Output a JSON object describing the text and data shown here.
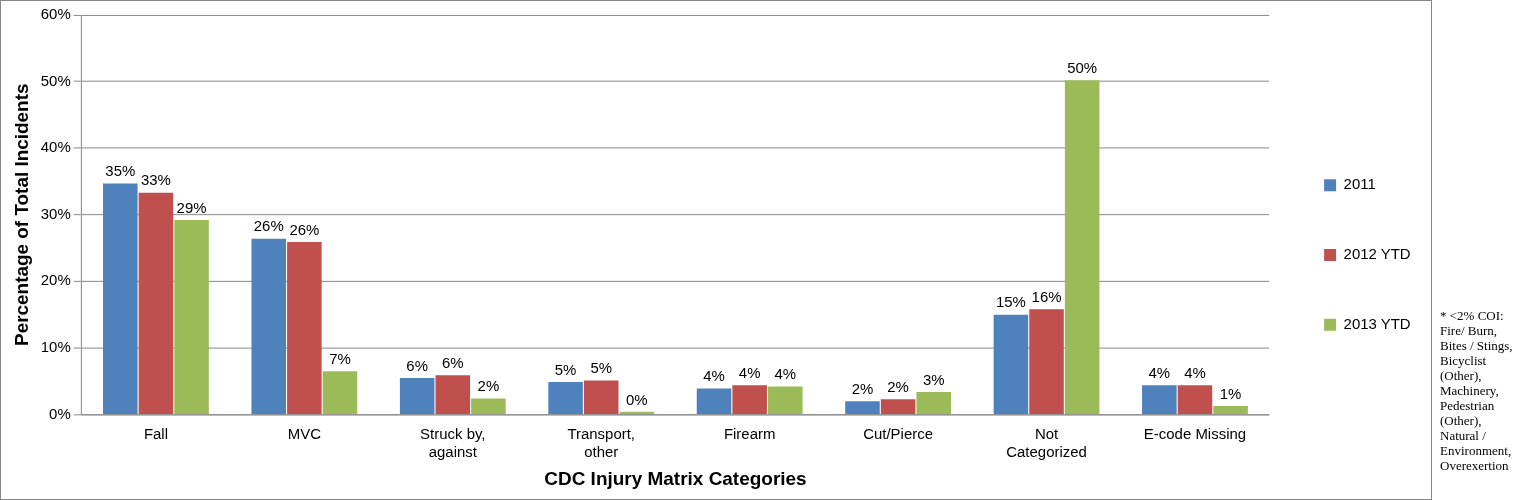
{
  "chart_data": {
    "type": "bar",
    "xlabel": "CDC Injury Matrix Categories",
    "ylabel": "Percentage of Total Incidents",
    "categories": [
      "Fall",
      "MVC",
      "Struck by, against",
      "Transport, other",
      "Firearm",
      "Cut/Pierce",
      "Not Categorized",
      "E-code Missing"
    ],
    "series": [
      {
        "name": "2011",
        "color": "#4f81bd",
        "values": [
          34.7,
          26.4,
          5.5,
          4.9,
          3.9,
          2.0,
          15.0,
          4.4
        ],
        "value_labels": [
          "35%",
          "26%",
          "6%",
          "5%",
          "4%",
          "2%",
          "15%",
          "4%"
        ]
      },
      {
        "name": "2012 YTD",
        "color": "#c0504d",
        "values": [
          33.3,
          25.9,
          5.9,
          5.1,
          4.4,
          2.3,
          15.8,
          4.4
        ],
        "value_labels": [
          "33%",
          "26%",
          "6%",
          "5%",
          "4%",
          "2%",
          "16%",
          "4%"
        ]
      },
      {
        "name": "2013 YTD",
        "color": "#9bbb59",
        "values": [
          29.2,
          6.5,
          2.4,
          0.4,
          4.2,
          3.4,
          50.2,
          1.3
        ],
        "value_labels": [
          "29%",
          "7%",
          "2%",
          "0%",
          "4%",
          "3%",
          "50%",
          "1%"
        ]
      }
    ],
    "ylim": [
      0,
      60
    ],
    "yticks": [
      {
        "value": 0,
        "label": "0%"
      },
      {
        "value": 10,
        "label": "10%"
      },
      {
        "value": 20,
        "label": "20%"
      },
      {
        "value": 30,
        "label": "30%"
      },
      {
        "value": 40,
        "label": "40%"
      },
      {
        "value": 50,
        "label": "50%"
      },
      {
        "value": 60,
        "label": "60%"
      }
    ],
    "grid": "y",
    "legend": "right",
    "annotations": [
      "* <2% COI: Fire/ Burn, Bites / Stings, Bicyclist (Other), Machinery, Pedestrian (Other), Natural / Environment, Overexertion"
    ]
  }
}
